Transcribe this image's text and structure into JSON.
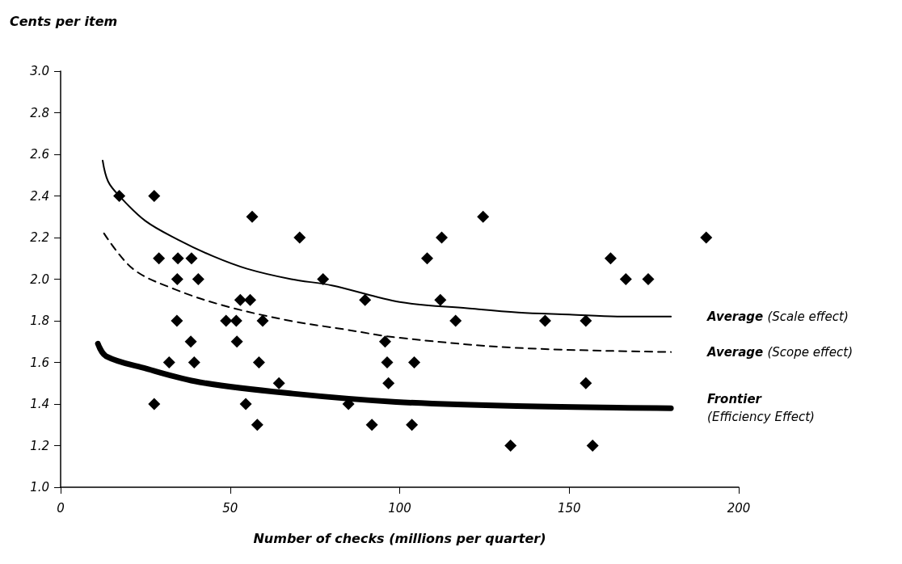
{
  "chart_data": {
    "type": "scatter",
    "xlabel": "Number of checks (millions per quarter)",
    "ylabel": "Cents per item",
    "xlim": [
      0,
      200
    ],
    "xticks": [
      0,
      50,
      100,
      150,
      200
    ],
    "ylim": [
      1,
      3
    ],
    "yticks": [
      {
        "value": 1,
        "label": "1.0"
      },
      {
        "value": 1.2,
        "label": "1.2"
      },
      {
        "value": 1.4,
        "label": "1.4"
      },
      {
        "value": 1.6,
        "label": "1.6"
      },
      {
        "value": 1.8,
        "label": "1.8"
      },
      {
        "value": 2,
        "label": "2.0"
      },
      {
        "value": 2.2,
        "label": "2.2"
      },
      {
        "value": 2.4,
        "label": "2.4"
      },
      {
        "value": 2.6,
        "label": "2.6"
      },
      {
        "value": 2.8,
        "label": "2.8"
      },
      {
        "value": 3,
        "label": "3.0"
      }
    ],
    "grid": false,
    "legend": false,
    "series": [
      {
        "color": "#000000",
        "marker": "diamond",
        "x": [
          17.3,
          27.6,
          56.5,
          29,
          34.6,
          38.6,
          34.4,
          40.6,
          53,
          55.9,
          34.3,
          48.8,
          51.8,
          59.6,
          38.4,
          52,
          32,
          39.4,
          58.5,
          64.4,
          27.6,
          54.6,
          58,
          70.5,
          77.4,
          89.8,
          95.7,
          96.3,
          104.3,
          96.7,
          84.9,
          91.8,
          103.6,
          124.6,
          112.4,
          108.1,
          112,
          116.5,
          132.7,
          190.4,
          162.2,
          166.7,
          173.3,
          142.9,
          154.9,
          154.9,
          156.9
        ],
        "values": [
          2.4,
          2.4,
          2.3,
          2.1,
          2.1,
          2.1,
          2.0,
          2.0,
          1.9,
          1.9,
          1.8,
          1.8,
          1.8,
          1.8,
          1.7,
          1.7,
          1.6,
          1.6,
          1.6,
          1.5,
          1.4,
          1.4,
          1.3,
          2.2,
          2.0,
          1.9,
          1.7,
          1.6,
          1.6,
          1.5,
          1.4,
          1.3,
          1.3,
          2.3,
          2.2,
          2.1,
          1.9,
          1.8,
          1.2,
          2.2,
          2.1,
          2.0,
          2.0,
          1.8,
          1.8,
          1.5,
          1.2
        ]
      },
      {
        "type": "line",
        "name": "Average (Scale effect)",
        "color": "#000000",
        "marker": "none",
        "line_style": "solid",
        "x": [
          12.4,
          14,
          17.3,
          25,
          34.6,
          45,
          55,
          68,
          80,
          100,
          120,
          135,
          150,
          165,
          180
        ],
        "values": [
          2.57,
          2.47,
          2.4,
          2.28,
          2.19,
          2.11,
          2.05,
          2.0,
          1.97,
          1.89,
          1.86,
          1.84,
          1.83,
          1.82,
          1.82
        ]
      },
      {
        "type": "line",
        "name": "Average (Scope effect)",
        "color": "#000000",
        "marker": "none",
        "line_style": "dashed",
        "x": [
          12.8,
          21.3,
          33.9,
          48.8,
          67.7,
          83.3,
          99,
          134.5,
          180
        ],
        "values": [
          2.22,
          2.05,
          1.95,
          1.87,
          1.8,
          1.76,
          1.72,
          1.67,
          1.65
        ]
      },
      {
        "type": "line",
        "name": "Frontier\n(Efficiency Effect)",
        "color": "#000000",
        "marker": "none",
        "line_style": "solid",
        "x": [
          11,
          13.4,
          25.2,
          41,
          68.5,
          99,
          134.5,
          180
        ],
        "values": [
          1.69,
          1.63,
          1.57,
          1.505,
          1.45,
          1.41,
          1.39,
          1.38
        ]
      }
    ]
  }
}
